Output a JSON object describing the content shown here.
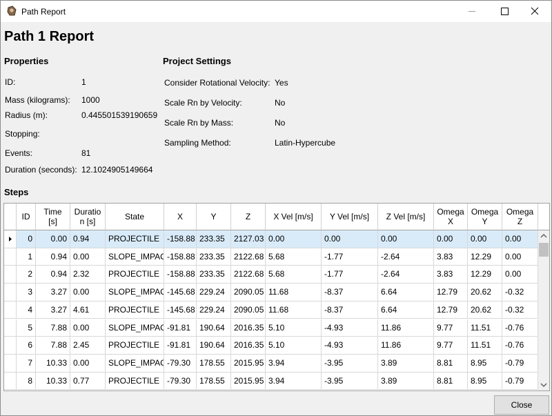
{
  "window": {
    "title": "Path Report"
  },
  "header": {
    "title": "Path 1 Report"
  },
  "properties": {
    "heading": "Properties",
    "rows": [
      [
        "ID:",
        "1"
      ],
      [
        "Mass (kilograms):",
        "1000"
      ],
      [
        "Radius (m):",
        "0.445501539190659"
      ],
      [
        "Stopping:"
      ],
      [
        "Events:",
        "81"
      ],
      [
        "Duration (seconds):",
        "12.1024905149664"
      ]
    ]
  },
  "project_settings": {
    "heading": "Project Settings",
    "rows": [
      [
        "Consider Rotational Velocity:",
        "Yes"
      ],
      [
        "Scale Rn by Velocity:",
        "No"
      ],
      [
        "Scale Rn by Mass:",
        "No"
      ],
      [
        "Sampling Method:",
        "Latin-Hypercube"
      ]
    ]
  },
  "steps": {
    "heading": "Steps",
    "table": {
      "columns": [
        "ID",
        "Time [s]",
        "Duration [s]",
        "State",
        "X",
        "Y",
        "Z",
        "X Vel [m/s]",
        "Y Vel [m/s]",
        "Z Vel [m/s]",
        "Omega X",
        "Omega Y",
        "Omega Z"
      ],
      "rows": [
        [
          "0",
          "0.00",
          "0.94",
          "PROJECTILE",
          "-158.88",
          "233.35",
          "2127.03",
          "0.00",
          "0.00",
          "0.00",
          "0.00",
          "0.00",
          "0.00"
        ],
        [
          "1",
          "0.94",
          "0.00",
          "SLOPE_IMPAC",
          "-158.88",
          "233.35",
          "2122.68",
          "5.68",
          "-1.77",
          "-2.64",
          "3.83",
          "12.29",
          "0.00"
        ],
        [
          "2",
          "0.94",
          "2.32",
          "PROJECTILE",
          "-158.88",
          "233.35",
          "2122.68",
          "5.68",
          "-1.77",
          "-2.64",
          "3.83",
          "12.29",
          "0.00"
        ],
        [
          "3",
          "3.27",
          "0.00",
          "SLOPE_IMPAC",
          "-145.68",
          "229.24",
          "2090.05",
          "11.68",
          "-8.37",
          "6.64",
          "12.79",
          "20.62",
          "-0.32"
        ],
        [
          "4",
          "3.27",
          "4.61",
          "PROJECTILE",
          "-145.68",
          "229.24",
          "2090.05",
          "11.68",
          "-8.37",
          "6.64",
          "12.79",
          "20.62",
          "-0.32"
        ],
        [
          "5",
          "7.88",
          "0.00",
          "SLOPE_IMPAC",
          "-91.81",
          "190.64",
          "2016.35",
          "5.10",
          "-4.93",
          "11.86",
          "9.77",
          "11.51",
          "-0.76"
        ],
        [
          "6",
          "7.88",
          "2.45",
          "PROJECTILE",
          "-91.81",
          "190.64",
          "2016.35",
          "5.10",
          "-4.93",
          "11.86",
          "9.77",
          "11.51",
          "-0.76"
        ],
        [
          "7",
          "10.33",
          "0.00",
          "SLOPE_IMPAC",
          "-79.30",
          "178.55",
          "2015.95",
          "3.94",
          "-3.95",
          "3.89",
          "8.81",
          "8.95",
          "-0.79"
        ],
        [
          "8",
          "10.33",
          "0.77",
          "PROJECTILE",
          "-79.30",
          "178.55",
          "2015.95",
          "3.94",
          "-3.95",
          "3.89",
          "8.81",
          "8.95",
          "-0.79"
        ]
      ]
    }
  },
  "footer": {
    "close_button": "Close"
  }
}
